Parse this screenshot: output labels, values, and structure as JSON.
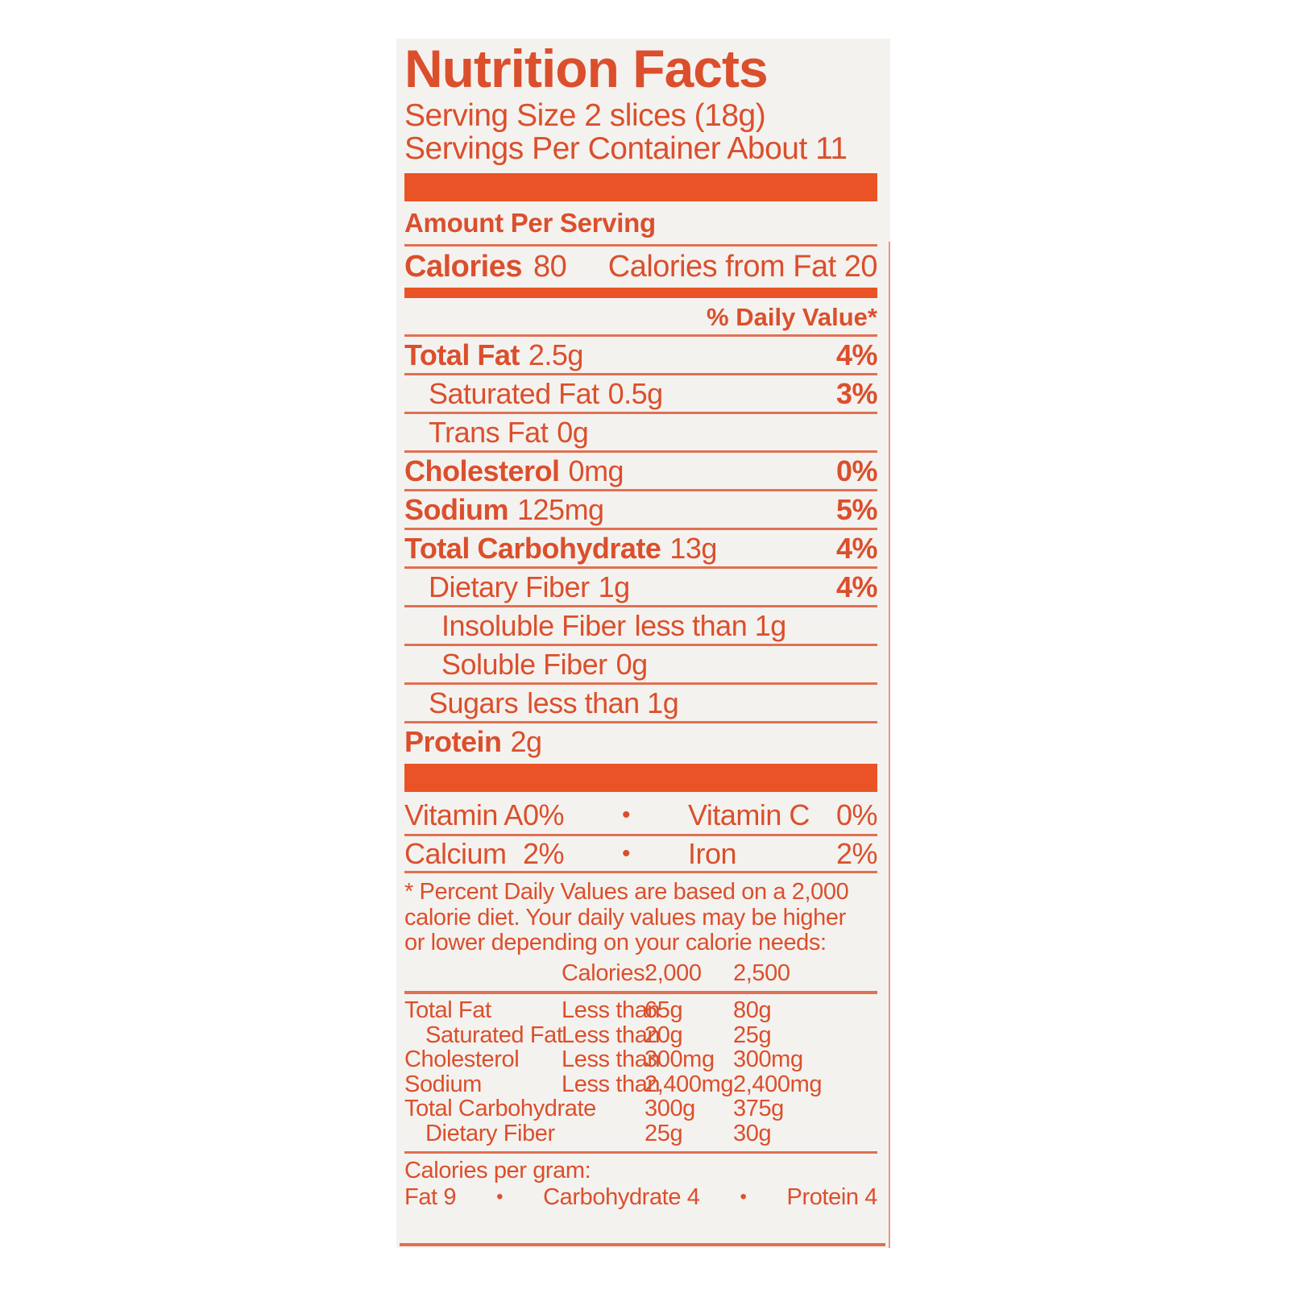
{
  "colors": {
    "accent": "#db4f2c",
    "bar": "#e95326",
    "card_bg": "#f4f2ef",
    "page_bg": "#ffffff"
  },
  "bullet": "•",
  "label": {
    "title": "Nutrition Facts",
    "serving_size": "Serving Size 2 slices (18g)",
    "servings_per_container": "Servings Per Container About 11",
    "amount_per_serving": "Amount Per Serving",
    "calories": {
      "label": "Calories",
      "value": "80",
      "from_fat": "Calories from Fat 20"
    },
    "daily_value_header": "% Daily Value*",
    "nutrients": [
      {
        "label": "Total Fat",
        "value": "2.5g",
        "dv": "4%",
        "bold": true,
        "indent": 0
      },
      {
        "label": "Saturated Fat",
        "value": "0.5g",
        "dv": "3%",
        "bold": false,
        "indent": 1
      },
      {
        "label": "Trans Fat",
        "value": "0g",
        "dv": "",
        "bold": false,
        "indent": 1
      },
      {
        "label": "Cholesterol",
        "value": "0mg",
        "dv": "0%",
        "bold": true,
        "indent": 0
      },
      {
        "label": "Sodium",
        "value": "125mg",
        "dv": "5%",
        "bold": true,
        "indent": 0
      },
      {
        "label": "Total Carbohydrate",
        "value": "13g",
        "dv": "4%",
        "bold": true,
        "indent": 0
      },
      {
        "label": "Dietary Fiber",
        "value": "1g",
        "dv": "4%",
        "bold": false,
        "indent": 1
      },
      {
        "label": "Insoluble Fiber",
        "value": "less than 1g",
        "dv": "",
        "bold": false,
        "indent": 2
      },
      {
        "label": "Soluble Fiber",
        "value": "0g",
        "dv": "",
        "bold": false,
        "indent": 2
      },
      {
        "label": "Sugars",
        "value": "less than 1g",
        "dv": "",
        "bold": false,
        "indent": 1
      },
      {
        "label": "Protein",
        "value": "2g",
        "dv": "",
        "bold": true,
        "indent": 0
      }
    ],
    "vitamins": [
      {
        "left_label": "Vitamin A",
        "left_value": "0%",
        "right_label": "Vitamin C",
        "right_value": "0%"
      },
      {
        "left_label": "Calcium",
        "left_value": "2%",
        "right_label": "Iron",
        "right_value": "2%"
      }
    ],
    "footnote_lines": [
      "* Percent Daily Values are based on a 2,000",
      "calorie diet. Your daily values may be higher",
      "or lower depending on your calorie needs:"
    ],
    "dv_table": {
      "header": {
        "label": "Calories:",
        "col1": "2,000",
        "col2": "2,500"
      },
      "rows": [
        {
          "label": "Total Fat",
          "qualifier": "Less than",
          "col1": "65g",
          "col2": "80g",
          "indent": 0
        },
        {
          "label": "Saturated Fat",
          "qualifier": "Less than",
          "col1": "20g",
          "col2": "25g",
          "indent": 1
        },
        {
          "label": "Cholesterol",
          "qualifier": "Less than",
          "col1": "300mg",
          "col2": "300mg",
          "indent": 0
        },
        {
          "label": "Sodium",
          "qualifier": "Less than",
          "col1": "2,400mg",
          "col2": "2,400mg",
          "indent": 0
        },
        {
          "label": "Total Carbohydrate",
          "qualifier": "",
          "col1": "300g",
          "col2": "375g",
          "indent": 0
        },
        {
          "label": "Dietary Fiber",
          "qualifier": "",
          "col1": "25g",
          "col2": "30g",
          "indent": 1
        }
      ]
    },
    "calories_per_gram": {
      "title": "Calories per gram:",
      "items": [
        "Fat 9",
        "Carbohydrate 4",
        "Protein 4"
      ]
    }
  }
}
